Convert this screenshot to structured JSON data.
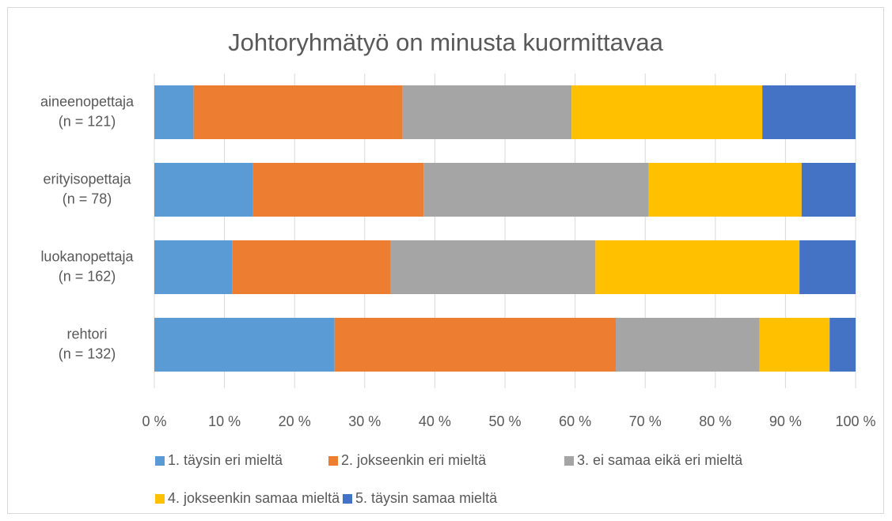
{
  "chart_data": {
    "type": "stacked_bar_horizontal",
    "title": "Johtoryhmätyö on minusta kuormittavaa",
    "categories": [
      [
        "aineenopettaja",
        "(n = 121)"
      ],
      [
        "erityisopettaja",
        "(n = 78)"
      ],
      [
        "luokanopettaja",
        "(n = 162)"
      ],
      [
        "rehtori",
        "(n = 132)"
      ]
    ],
    "series": [
      {
        "name": "1. täysin eri mieltä",
        "color": "#5b9bd5",
        "values": [
          5.6,
          14.0,
          11.1,
          25.7
        ]
      },
      {
        "name": "2. jokseenkin eri mieltä",
        "color": "#ed7d31",
        "values": [
          29.8,
          24.4,
          22.6,
          40.1
        ]
      },
      {
        "name": "3. ei samaa eikä eri mieltä",
        "color": "#a5a5a5",
        "values": [
          24.1,
          32.1,
          29.2,
          20.5
        ]
      },
      {
        "name": "4. jokseenkin samaa mieltä",
        "color": "#ffc000",
        "values": [
          27.2,
          21.8,
          29.1,
          10.0
        ]
      },
      {
        "name": "5. täysin samaa mieltä",
        "color": "#4472c4",
        "values": [
          13.3,
          7.7,
          8.0,
          3.7
        ]
      }
    ],
    "xlim": [
      0,
      100
    ],
    "xticks": [
      {
        "value": 0,
        "label": "0 %"
      },
      {
        "value": 10,
        "label": "10 %"
      },
      {
        "value": 20,
        "label": "20 %"
      },
      {
        "value": 30,
        "label": "30 %"
      },
      {
        "value": 40,
        "label": "40 %"
      },
      {
        "value": 50,
        "label": "50 %"
      },
      {
        "value": 60,
        "label": "60 %"
      },
      {
        "value": 70,
        "label": "70 %"
      },
      {
        "value": 80,
        "label": "80 %"
      },
      {
        "value": 90,
        "label": "90 %"
      },
      {
        "value": 100,
        "label": "100 %"
      }
    ],
    "grid": true,
    "legend": "bottom"
  }
}
